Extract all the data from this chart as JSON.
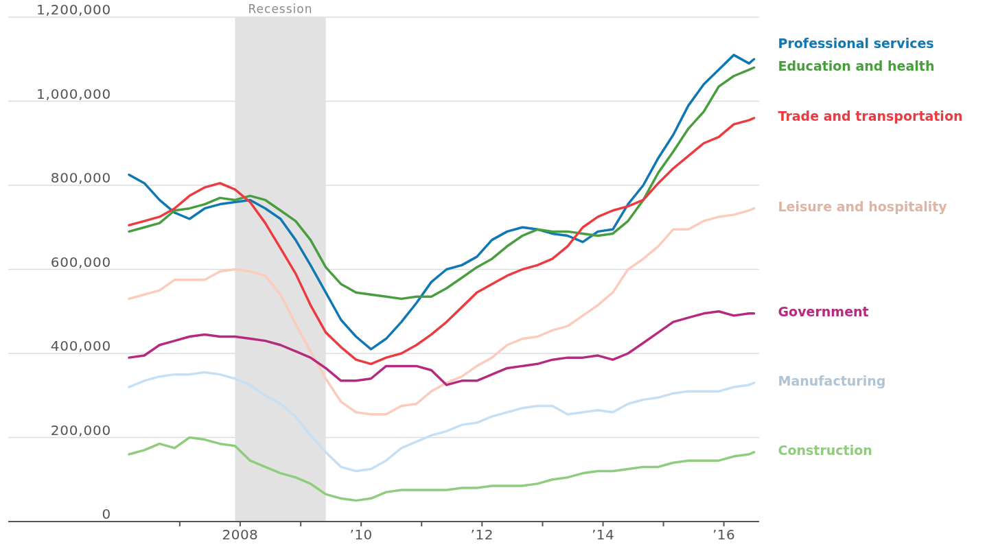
{
  "chart_data": {
    "type": "line",
    "x": [
      "2006-03",
      "2006-06",
      "2006-09",
      "2006-12",
      "2007-03",
      "2007-06",
      "2007-09",
      "2007-12",
      "2008-03",
      "2008-06",
      "2008-09",
      "2008-12",
      "2009-03",
      "2009-06",
      "2009-09",
      "2009-12",
      "2010-03",
      "2010-06",
      "2010-09",
      "2010-12",
      "2011-03",
      "2011-06",
      "2011-09",
      "2011-12",
      "2012-03",
      "2012-06",
      "2012-09",
      "2012-12",
      "2013-03",
      "2013-06",
      "2013-09",
      "2013-12",
      "2014-03",
      "2014-06",
      "2014-09",
      "2014-12",
      "2015-03",
      "2015-06",
      "2015-09",
      "2015-12",
      "2016-03",
      "2016-06",
      "2016-07"
    ],
    "series": [
      {
        "name": "Professional services",
        "color": "#0f78b4",
        "values": [
          825000,
          805000,
          765000,
          735000,
          720000,
          745000,
          755000,
          760000,
          765000,
          745000,
          720000,
          670000,
          610000,
          545000,
          480000,
          440000,
          410000,
          435000,
          475000,
          520000,
          570000,
          600000,
          610000,
          630000,
          670000,
          690000,
          700000,
          695000,
          685000,
          680000,
          665000,
          690000,
          695000,
          755000,
          800000,
          865000,
          920000,
          990000,
          1040000,
          1075000,
          1110000,
          1090000,
          1100000
        ]
      },
      {
        "name": "Education and health",
        "color": "#4a9d3f",
        "values": [
          690000,
          700000,
          710000,
          740000,
          745000,
          755000,
          770000,
          765000,
          775000,
          765000,
          740000,
          715000,
          670000,
          605000,
          565000,
          545000,
          540000,
          535000,
          530000,
          535000,
          535000,
          555000,
          580000,
          605000,
          625000,
          655000,
          680000,
          695000,
          690000,
          690000,
          685000,
          680000,
          685000,
          715000,
          765000,
          830000,
          880000,
          935000,
          975000,
          1035000,
          1060000,
          1075000,
          1080000
        ]
      },
      {
        "name": "Trade and transportation",
        "color": "#ec3b40",
        "values": [
          705000,
          715000,
          725000,
          745000,
          775000,
          795000,
          805000,
          790000,
          760000,
          710000,
          650000,
          590000,
          515000,
          450000,
          415000,
          385000,
          375000,
          390000,
          400000,
          420000,
          445000,
          475000,
          510000,
          545000,
          565000,
          585000,
          600000,
          610000,
          625000,
          655000,
          700000,
          725000,
          740000,
          750000,
          765000,
          805000,
          840000,
          870000,
          900000,
          915000,
          945000,
          955000,
          960000
        ]
      },
      {
        "name": "Leisure and hospitality",
        "color": "#fbcbbb",
        "values": [
          530000,
          540000,
          550000,
          575000,
          575000,
          575000,
          595000,
          600000,
          595000,
          585000,
          540000,
          470000,
          405000,
          340000,
          285000,
          260000,
          255000,
          255000,
          275000,
          280000,
          310000,
          330000,
          345000,
          370000,
          390000,
          420000,
          435000,
          440000,
          455000,
          465000,
          490000,
          515000,
          545000,
          600000,
          625000,
          655000,
          695000,
          695000,
          715000,
          725000,
          730000,
          740000,
          745000
        ]
      },
      {
        "name": "Government",
        "color": "#b52a7f",
        "values": [
          390000,
          395000,
          420000,
          430000,
          440000,
          445000,
          440000,
          440000,
          435000,
          430000,
          420000,
          405000,
          390000,
          365000,
          335000,
          335000,
          340000,
          370000,
          370000,
          370000,
          360000,
          325000,
          335000,
          335000,
          350000,
          365000,
          370000,
          375000,
          385000,
          390000,
          390000,
          395000,
          385000,
          400000,
          425000,
          450000,
          475000,
          485000,
          495000,
          500000,
          490000,
          495000,
          495000
        ]
      },
      {
        "name": "Manufacturing",
        "color": "#c6dff2",
        "values": [
          320000,
          335000,
          345000,
          350000,
          350000,
          355000,
          350000,
          340000,
          325000,
          300000,
          280000,
          250000,
          205000,
          165000,
          130000,
          120000,
          125000,
          145000,
          175000,
          190000,
          205000,
          215000,
          230000,
          235000,
          250000,
          260000,
          270000,
          275000,
          275000,
          255000,
          260000,
          265000,
          260000,
          280000,
          290000,
          295000,
          305000,
          310000,
          310000,
          310000,
          320000,
          325000,
          330000
        ]
      },
      {
        "name": "Construction",
        "color": "#90cc7d",
        "values": [
          160000,
          170000,
          185000,
          175000,
          200000,
          195000,
          185000,
          180000,
          145000,
          130000,
          115000,
          105000,
          90000,
          65000,
          55000,
          50000,
          55000,
          70000,
          75000,
          75000,
          75000,
          75000,
          80000,
          80000,
          85000,
          85000,
          85000,
          90000,
          100000,
          105000,
          115000,
          120000,
          120000,
          125000,
          130000,
          130000,
          140000,
          145000,
          145000,
          145000,
          155000,
          160000,
          165000
        ]
      }
    ],
    "xlim": [
      "2004-03",
      "2016-08"
    ],
    "xticks": [
      {
        "value": "2007",
        "label": null
      },
      {
        "value": "2008",
        "label": "2008"
      },
      {
        "value": "2009",
        "label": null
      },
      {
        "value": "2010",
        "label": "’10"
      },
      {
        "value": "2011",
        "label": null
      },
      {
        "value": "2012",
        "label": "’12"
      },
      {
        "value": "2013",
        "label": null
      },
      {
        "value": "2014",
        "label": "’14"
      },
      {
        "value": "2015",
        "label": null
      },
      {
        "value": "2016",
        "label": "’16"
      }
    ],
    "ylim": [
      0,
      1200000
    ],
    "yticks": [
      0,
      {
        "value": 200000,
        "label": "200,000"
      },
      {
        "value": 400000,
        "label": "400,000"
      },
      {
        "value": 600000,
        "label": "600,000"
      },
      {
        "value": 800000,
        "label": "800,000"
      },
      {
        "value": 1000000,
        "label": "1,000,000"
      },
      {
        "value": 1200000,
        "label": "1,200,000"
      }
    ],
    "grid": "y",
    "bands": [
      {
        "axis": "x",
        "from": "2007-12",
        "to": "2009-06",
        "label": "Recession",
        "color": "#e2e2e2"
      }
    ]
  }
}
